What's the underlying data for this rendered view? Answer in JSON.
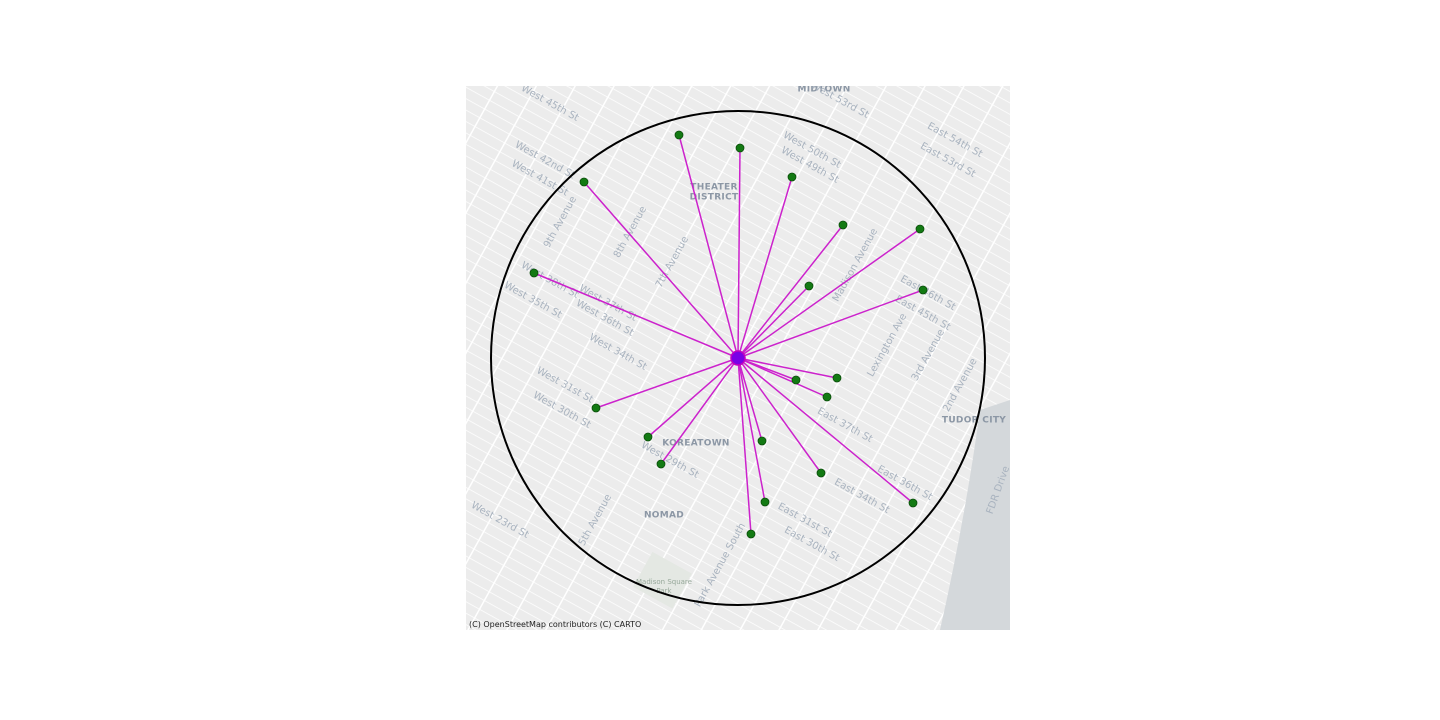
{
  "map": {
    "districts": [
      "MIDTOWN",
      "THEATER",
      "DISTRICT",
      "KOREATOWN",
      "NOMAD",
      "TUDOR CITY"
    ],
    "streets": [
      "West 45th St",
      "West 42nd St",
      "West 41st St",
      "West 38th St",
      "West 37th St",
      "West 36th St",
      "West 35th St",
      "West 34th St",
      "West 31st St",
      "West 30th St",
      "West 29th St",
      "West 23rd St",
      "West 50th St",
      "West 49th St",
      "West 53rd St",
      "East 46th St",
      "East 45th St",
      "East 37th St",
      "East 36th St",
      "East 34th St",
      "East 31st St",
      "East 30th St",
      "East 54th St",
      "East 53rd St",
      "9th Avenue",
      "8th Avenue",
      "7th Avenue",
      "Madison Avenue",
      "Lexington Ave",
      "3rd Avenue",
      "2nd Avenue",
      "5th Avenue",
      "Park Avenue South",
      "FDR Drive"
    ],
    "park": [
      "Madison Square",
      "Park"
    ],
    "attribution": "(C) OpenStreetMap contributors (C) CARTO"
  }
}
